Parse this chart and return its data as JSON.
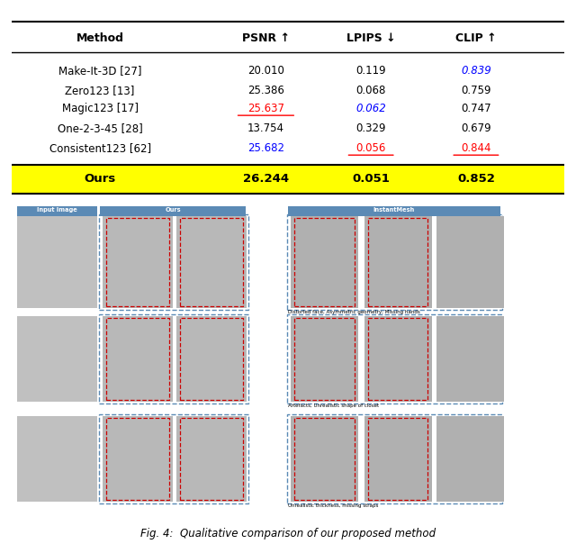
{
  "table_methods": [
    "Make-It-3D [27]",
    "Zero123 [13]",
    "Magic123 [17]",
    "One-2-3-45 [28]",
    "Consistent123 [62]"
  ],
  "table_psnr": [
    "20.010",
    "25.386",
    "25.637",
    "13.754",
    "25.682"
  ],
  "table_lpips": [
    "0.119",
    "0.068",
    "0.062",
    "0.329",
    "0.056"
  ],
  "table_clip": [
    "0.839",
    "0.759",
    "0.747",
    "0.679",
    "0.844"
  ],
  "ours_psnr": "26.244",
  "ours_lpips": "0.051",
  "ours_clip": "0.852",
  "psnr_colors": [
    "black",
    "black",
    "red",
    "black",
    "blue"
  ],
  "lpips_colors": [
    "black",
    "black",
    "blue",
    "black",
    "red"
  ],
  "clip_colors": [
    "blue",
    "black",
    "black",
    "black",
    "red"
  ],
  "psnr_underline": [
    false,
    false,
    true,
    false,
    false
  ],
  "lpips_underline": [
    false,
    false,
    false,
    false,
    true
  ],
  "clip_underline": [
    false,
    false,
    false,
    false,
    true
  ],
  "psnr_italic": [
    false,
    false,
    false,
    false,
    false
  ],
  "lpips_italic": [
    false,
    false,
    true,
    false,
    false
  ],
  "clip_italic": [
    true,
    false,
    false,
    false,
    false
  ],
  "col_header": [
    "Method",
    "PSNR ↑",
    "LPIPS ↓",
    "CLIP ↑"
  ],
  "yellow_bg": "#ffff00",
  "caption": "Fig. 4:  Qualitative comparison of our proposed method",
  "label_input": "Input Image",
  "label_ours": "Ours",
  "label_instantmesh": "InstantMesh",
  "note1": "Distorted face, Asymmetric geometry; Missing hands",
  "note2": "Artefacts, Unrealistic shape of closet",
  "note3": "Unrealistic thickness, missing straps",
  "label_bg": "#5b8ab5",
  "border_color_blue": "#5b8ab5",
  "border_color_red": "#cc0000"
}
